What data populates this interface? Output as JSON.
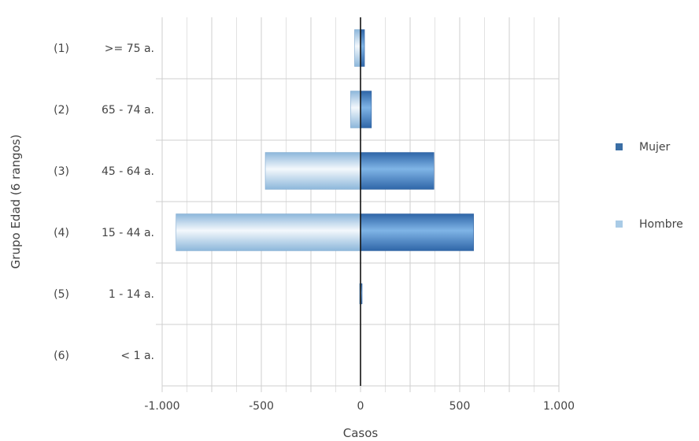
{
  "chart_data": {
    "type": "bar",
    "orientation": "horizontal",
    "stacked": "diverging",
    "categories": [
      ">= 75 a.",
      "65 - 74 a.",
      "45 - 64 a.",
      "15 - 44 a.",
      "1 - 14 a.",
      "< 1 a."
    ],
    "category_indices": [
      "(1)",
      "(2)",
      "(3)",
      "(4)",
      "(5)",
      "(6)"
    ],
    "series": [
      {
        "name": "Mujer",
        "values": [
          20,
          55,
          370,
          570,
          5,
          0
        ],
        "color": "#3f7fc4"
      },
      {
        "name": "Hombre",
        "values": [
          -30,
          -50,
          -480,
          -930,
          -5,
          0
        ],
        "color": "#a9cbe6"
      }
    ],
    "xlabel": "Casos",
    "ylabel": "Grupo Edad (6 rangos)",
    "xlim": [
      -1000,
      1000
    ],
    "xticks": [
      -1000,
      -500,
      0,
      500,
      1000
    ],
    "xtick_labels": [
      "-1.000",
      "-500",
      "0",
      "500",
      "1.000"
    ],
    "grid": true,
    "legend_position": "right"
  }
}
